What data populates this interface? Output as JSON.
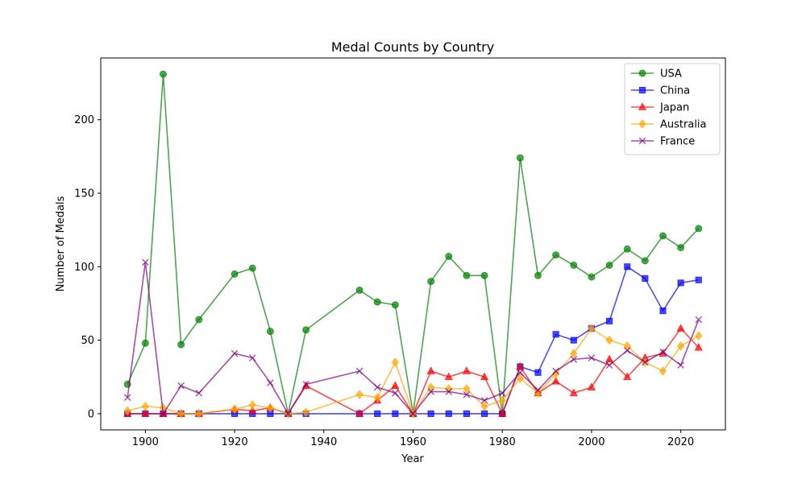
{
  "chart_data": {
    "type": "line",
    "title": "Medal Counts by Country",
    "xlabel": "Year",
    "ylabel": "Number of Medals",
    "xlim": [
      1890,
      2030
    ],
    "ylim": [
      -11,
      242
    ],
    "xticks": [
      1900,
      1920,
      1940,
      1960,
      1980,
      2000,
      2020
    ],
    "yticks": [
      0,
      50,
      100,
      150,
      200
    ],
    "grid": false,
    "legend": "top-right",
    "x": [
      1896,
      1900,
      1904,
      1908,
      1912,
      1920,
      1924,
      1928,
      1932,
      1936,
      1948,
      1952,
      1956,
      1960,
      1964,
      1968,
      1972,
      1976,
      1980,
      1984,
      1988,
      1992,
      1996,
      2000,
      2004,
      2008,
      2012,
      2016,
      2020,
      2024
    ],
    "series": [
      {
        "name": "USA",
        "color": "#008000",
        "marker": "circle",
        "values": [
          20,
          48,
          231,
          47,
          64,
          95,
          99,
          56,
          0,
          57,
          84,
          76,
          74,
          0,
          90,
          107,
          94,
          94,
          0,
          174,
          94,
          108,
          101,
          93,
          101,
          112,
          104,
          121,
          113,
          126
        ]
      },
      {
        "name": "China",
        "color": "#0000ff",
        "marker": "square",
        "values": [
          0,
          0,
          0,
          0,
          0,
          0,
          0,
          0,
          0,
          0,
          0,
          0,
          0,
          0,
          0,
          0,
          0,
          0,
          0,
          32,
          28,
          54,
          50,
          58,
          63,
          100,
          92,
          70,
          89,
          91
        ]
      },
      {
        "name": "Japan",
        "color": "#ff0000",
        "marker": "triangle",
        "values": [
          0,
          0,
          0,
          0,
          0,
          3,
          2,
          4,
          0,
          19,
          0,
          9,
          19,
          0,
          29,
          25,
          29,
          25,
          0,
          32,
          14,
          22,
          14,
          18,
          37,
          25,
          38,
          41,
          58,
          45
        ]
      },
      {
        "name": "Australia",
        "color": "#ffa500",
        "marker": "diamond",
        "values": [
          2,
          5,
          4,
          0,
          0,
          3,
          6,
          4,
          0,
          1,
          13,
          11,
          35,
          0,
          18,
          17,
          17,
          5,
          9,
          24,
          14,
          27,
          41,
          58,
          50,
          46,
          35,
          29,
          46,
          53
        ]
      },
      {
        "name": "France",
        "color": "#800080",
        "marker": "x",
        "values": [
          11,
          103,
          0,
          19,
          14,
          41,
          38,
          21,
          0,
          20,
          29,
          18,
          14,
          0,
          15,
          15,
          13,
          9,
          14,
          28,
          16,
          29,
          37,
          38,
          33,
          43,
          35,
          42,
          33,
          64
        ]
      }
    ]
  }
}
